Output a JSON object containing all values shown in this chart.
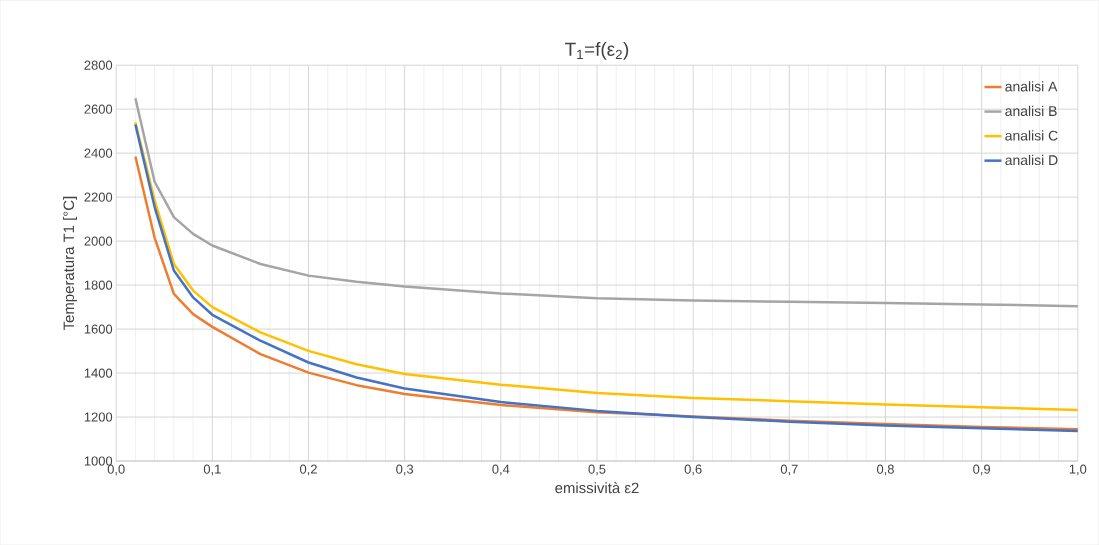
{
  "chart_data": {
    "type": "line",
    "title": "T$_{1}$=f(ε$_{2}$)",
    "xlabel": "emissività ε2",
    "ylabel": "Temperatura T1 [°C]",
    "xlim": [
      0,
      1
    ],
    "ylim": [
      1000,
      2800
    ],
    "xticks": [
      {
        "value": 0,
        "label": "0,0"
      },
      {
        "value": 0.1,
        "label": "0,1"
      },
      {
        "value": 0.2,
        "label": "0,2"
      },
      {
        "value": 0.3,
        "label": "0,3"
      },
      {
        "value": 0.4,
        "label": "0,4"
      },
      {
        "value": 0.5,
        "label": "0,5"
      },
      {
        "value": 0.6,
        "label": "0,6"
      },
      {
        "value": 0.7,
        "label": "0,7"
      },
      {
        "value": 0.8,
        "label": "0,8"
      },
      {
        "value": 0.9,
        "label": "0,9"
      },
      {
        "value": 1,
        "label": "1,0"
      }
    ],
    "yticks": [
      1000,
      1200,
      1400,
      1600,
      1800,
      2000,
      2200,
      2400,
      2600,
      2800
    ],
    "grid": true,
    "legend": "top right",
    "marker": "none",
    "line_style": "solid",
    "x": [
      0.02,
      0.04,
      0.06,
      0.08,
      0.1,
      0.15,
      0.2,
      0.25,
      0.3,
      0.4,
      0.5,
      0.6,
      0.7,
      0.8,
      0.9,
      1.0
    ],
    "series": [
      {
        "name": "analisi A",
        "color": "#ed7d31",
        "values": [
          2385,
          2015,
          1760,
          1668,
          1610,
          1486,
          1402,
          1345,
          1305,
          1255,
          1222,
          1203,
          1183,
          1168,
          1155,
          1145
        ]
      },
      {
        "name": "analisi B",
        "color": "#a5a5a5",
        "values": [
          2650,
          2270,
          2109,
          2033,
          1980,
          1896,
          1843,
          1815,
          1794,
          1762,
          1740,
          1730,
          1724,
          1719,
          1712,
          1704
        ]
      },
      {
        "name": "analisi C",
        "color": "#ffc000",
        "values": [
          2540,
          2185,
          1896,
          1775,
          1700,
          1585,
          1501,
          1440,
          1396,
          1347,
          1309,
          1287,
          1272,
          1257,
          1245,
          1232
        ]
      },
      {
        "name": "analisi D",
        "color": "#4472c4",
        "values": [
          2530,
          2155,
          1866,
          1744,
          1665,
          1547,
          1448,
          1380,
          1330,
          1268,
          1228,
          1200,
          1179,
          1162,
          1149,
          1136
        ]
      }
    ]
  }
}
